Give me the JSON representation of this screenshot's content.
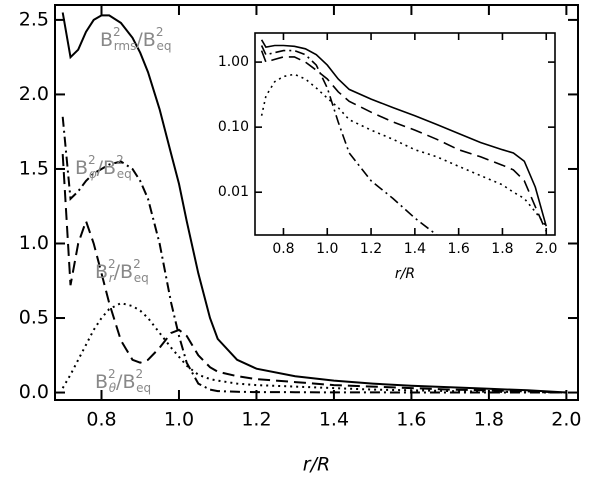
{
  "chart_data": [
    {
      "type": "line",
      "xlabel": "r/R",
      "x": [
        0.7,
        0.72,
        0.74,
        0.76,
        0.78,
        0.8,
        0.82,
        0.85,
        0.88,
        0.9,
        0.92,
        0.95,
        0.98,
        1.0,
        1.02,
        1.05,
        1.08,
        1.1,
        1.15,
        1.2,
        1.3,
        1.4,
        1.5,
        1.6,
        1.7,
        1.8,
        1.9,
        2.0
      ],
      "series": [
        {
          "color": "#000000",
          "style": "solid",
          "values": [
            2.55,
            2.25,
            2.3,
            2.42,
            2.5,
            2.53,
            2.53,
            2.48,
            2.38,
            2.28,
            2.15,
            1.9,
            1.6,
            1.4,
            1.15,
            0.8,
            0.5,
            0.36,
            0.22,
            0.16,
            0.11,
            0.08,
            0.06,
            0.045,
            0.035,
            0.025,
            0.015,
            0.0
          ]
        },
        {
          "color": "#000000",
          "style": "dashdot",
          "values": [
            1.85,
            1.3,
            1.35,
            1.42,
            1.47,
            1.5,
            1.53,
            1.55,
            1.5,
            1.42,
            1.3,
            1.0,
            0.6,
            0.38,
            0.2,
            0.06,
            0.02,
            0.01,
            0.005,
            0.003,
            0.002,
            0.001,
            0.001,
            0,
            0,
            0,
            0,
            0
          ]
        },
        {
          "color": "#000000",
          "style": "dotted",
          "values": [
            0.03,
            0.12,
            0.22,
            0.32,
            0.42,
            0.5,
            0.56,
            0.6,
            0.58,
            0.55,
            0.5,
            0.4,
            0.3,
            0.24,
            0.18,
            0.12,
            0.09,
            0.08,
            0.06,
            0.05,
            0.04,
            0.03,
            0.02,
            0.015,
            0.01,
            0.006,
            0.003,
            0
          ]
        },
        {
          "color": "#000000",
          "style": "dashed",
          "values": [
            1.6,
            0.72,
            1.0,
            1.15,
            1.0,
            0.8,
            0.6,
            0.35,
            0.22,
            0.2,
            0.22,
            0.3,
            0.4,
            0.42,
            0.38,
            0.25,
            0.17,
            0.14,
            0.11,
            0.09,
            0.07,
            0.05,
            0.04,
            0.03,
            0.02,
            0.015,
            0.008,
            0
          ]
        }
      ],
      "xlim": [
        0.68,
        2.03
      ],
      "ylim": [
        -0.05,
        2.6
      ],
      "xticks": [
        0.8,
        {
          "value": 1.0,
          "label": "1.0"
        },
        1.2,
        1.4,
        1.6,
        1.8,
        {
          "value": 2.0,
          "label": "2.0"
        }
      ],
      "yticks": [
        {
          "value": 0,
          "label": "0.0"
        },
        0.5,
        {
          "value": 1,
          "label": "1.0"
        },
        1.5,
        {
          "value": 2,
          "label": "2.0"
        },
        2.5
      ],
      "annotations": [
        {
          "num": "B",
          "num_sup": "2",
          "num_sub": "rms",
          "slash": "/",
          "den": "B",
          "den_sup": "2",
          "den_sub": "eq"
        },
        {
          "num": "B",
          "num_sup": "2",
          "num_sub": "φ",
          "slash": "/",
          "den": "B",
          "den_sup": "2",
          "den_sub": "eq"
        },
        {
          "num": "B",
          "num_sup": "2",
          "num_sub": "r",
          "slash": "/",
          "den": "B",
          "den_sup": "2",
          "den_sub": "eq"
        },
        {
          "num": "B",
          "num_sup": "2",
          "num_sub": "θ",
          "slash": "/",
          "den": "B",
          "den_sup": "2",
          "den_sub": "eq"
        }
      ],
      "annotation_color": "#888888"
    },
    {
      "type": "line",
      "xlabel": "r/R",
      "ylog": true,
      "x": [
        0.7,
        0.72,
        0.76,
        0.8,
        0.85,
        0.9,
        0.95,
        1.0,
        1.05,
        1.1,
        1.2,
        1.3,
        1.4,
        1.5,
        1.6,
        1.7,
        1.8,
        1.85,
        1.9,
        1.95,
        2.0
      ],
      "series": [
        {
          "color": "#000000",
          "style": "solid",
          "values": [
            2.2,
            1.7,
            1.8,
            1.8,
            1.75,
            1.6,
            1.3,
            0.9,
            0.55,
            0.38,
            0.27,
            0.2,
            0.15,
            0.11,
            0.08,
            0.058,
            0.045,
            0.04,
            0.03,
            0.012,
            0.003
          ]
        },
        {
          "color": "#000000",
          "style": "dashed",
          "values": [
            1.5,
            1.0,
            1.1,
            1.2,
            1.2,
            1.0,
            0.75,
            0.55,
            0.35,
            0.25,
            0.17,
            0.12,
            0.09,
            0.065,
            0.045,
            0.035,
            0.026,
            0.022,
            0.015,
            0.006,
            0.0025
          ]
        },
        {
          "color": "#000000",
          "style": "dashdot",
          "values": [
            1.8,
            1.3,
            1.4,
            1.5,
            1.5,
            1.3,
            0.9,
            0.4,
            0.12,
            0.04,
            0.015,
            0.008,
            0.004,
            0.0022,
            null,
            null,
            null,
            null,
            null,
            null,
            null
          ]
        },
        {
          "color": "#000000",
          "style": "dotted",
          "values": [
            0.15,
            0.3,
            0.5,
            0.6,
            0.65,
            0.55,
            0.4,
            0.28,
            0.2,
            0.13,
            0.09,
            0.065,
            0.045,
            0.035,
            0.025,
            0.018,
            0.013,
            0.01,
            0.008,
            0.005,
            0.003
          ]
        }
      ],
      "xlim": [
        0.67,
        2.04
      ],
      "ylim": [
        0.0022,
        2.8
      ],
      "xticks": [
        0.8,
        {
          "value": 1.0,
          "label": "1.0"
        },
        1.2,
        1.4,
        1.6,
        1.8,
        {
          "value": 2.0,
          "label": "2.0"
        }
      ],
      "yticks": [
        {
          "value": 1,
          "label": "1.00"
        },
        {
          "value": 0.1,
          "label": "0.10"
        },
        0.01
      ]
    }
  ]
}
